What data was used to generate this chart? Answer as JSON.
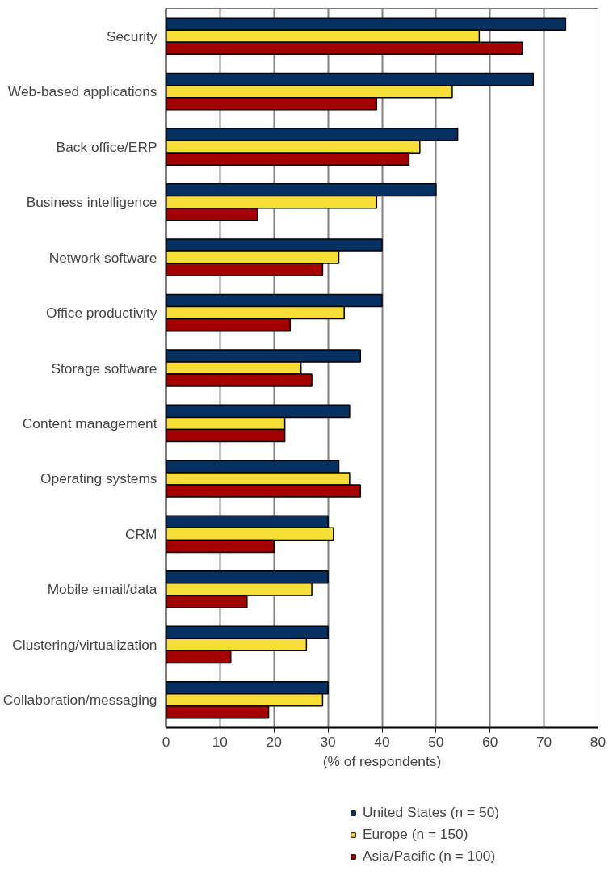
{
  "chart_data": {
    "type": "bar",
    "orientation": "horizontal",
    "xlabel": "(% of respondents)",
    "categories": [
      "Security",
      "Web-based applications",
      "Back office/ERP",
      "Business intelligence",
      "Network software",
      "Office productivity",
      "Storage software",
      "Content management",
      "Operating systems",
      "CRM",
      "Mobile email/data",
      "Clustering/virtualization",
      "Collaboration/messaging"
    ],
    "series": [
      {
        "name": "United States (n = 50)",
        "color": "#06305f",
        "values": [
          74,
          68,
          54,
          50,
          40,
          40,
          36,
          34,
          32,
          30,
          30,
          30,
          30
        ]
      },
      {
        "name": "Europe (n = 150)",
        "color": "#f7de36",
        "values": [
          58,
          53,
          47,
          39,
          32,
          33,
          25,
          22,
          34,
          31,
          27,
          26,
          29
        ]
      },
      {
        "name": "Asia/Pacific (n = 100)",
        "color": "#a30000",
        "values": [
          66,
          39,
          45,
          17,
          29,
          23,
          27,
          22,
          36,
          20,
          15,
          12,
          19
        ]
      }
    ],
    "xlim": [
      0,
      80
    ],
    "xticks": [
      0,
      10,
      20,
      30,
      40,
      50,
      60,
      70,
      80
    ],
    "grid": "x",
    "legend": "bottom"
  }
}
